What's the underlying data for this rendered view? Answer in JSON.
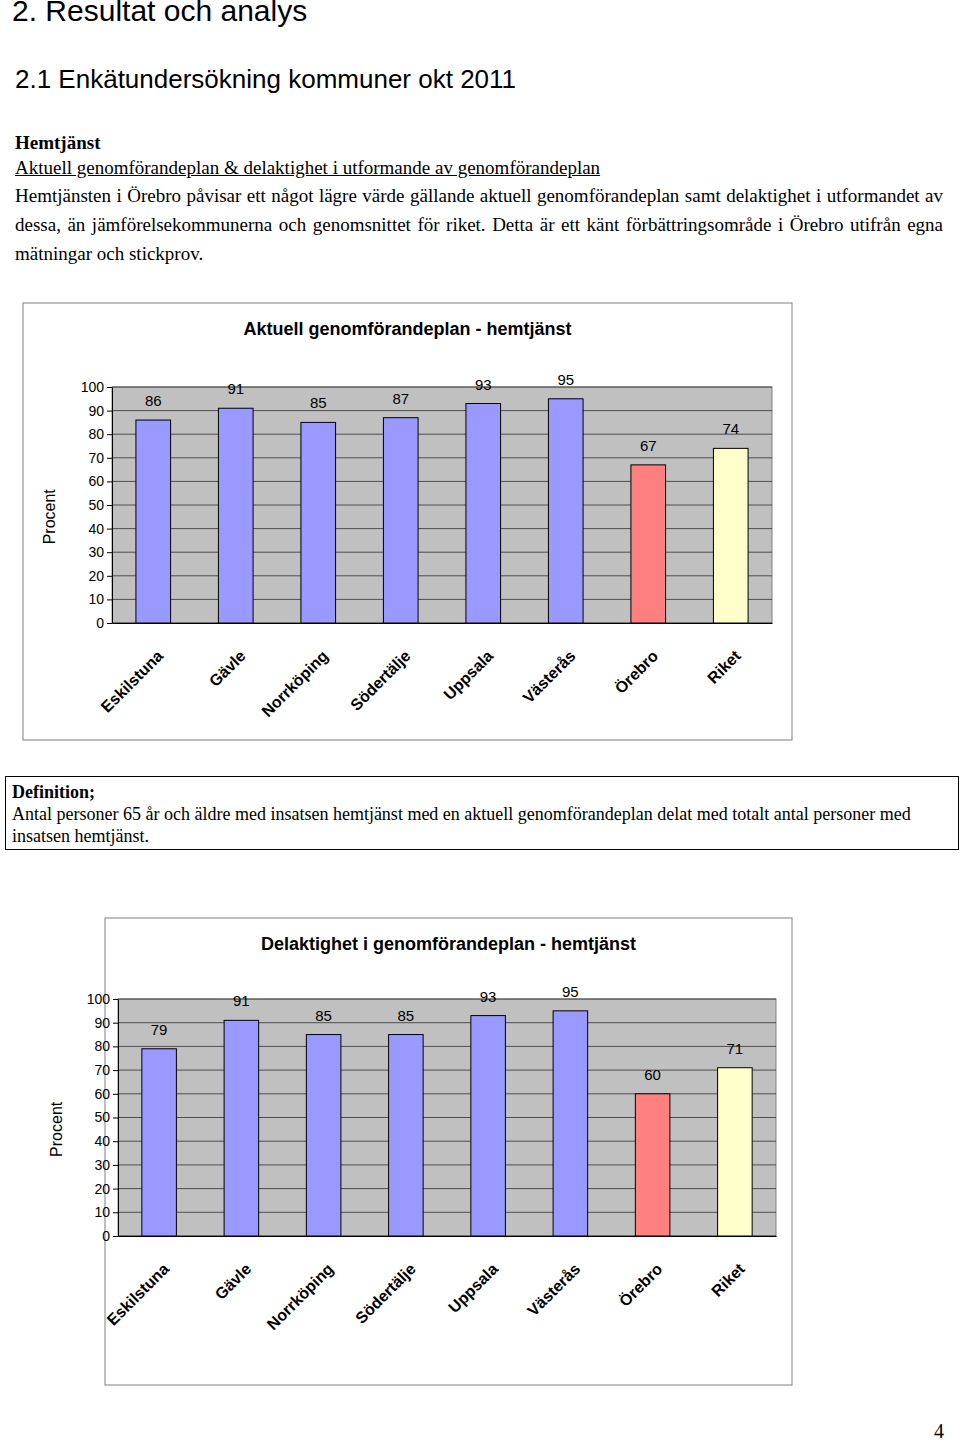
{
  "document": {
    "heading": "2. Resultat och analys",
    "subheading": "2.1 Enkätundersökning kommuner okt 2011",
    "section": "Hemtjänst",
    "subsection": "Aktuell genomförandeplan & delaktighet i utformande av genomförandeplan",
    "paragraph": "Hemtjänsten i Örebro påvisar ett något lägre värde gällande aktuell genomförandeplan samt delaktighet i utformandet av dessa, än jämförelsekommunerna och genomsnittet för riket. Detta är ett känt förbättringsområde i Örebro utifrån egna mätningar och stickprov.",
    "definition_title": "Definition;",
    "definition_text": "Antal personer 65 år och äldre med insatsen hemtjänst med en aktuell genomförandeplan delat med totalt antal personer med insatsen hemtjänst.",
    "page_number": "4"
  },
  "chart_data": [
    {
      "type": "bar",
      "title": "Aktuell genomförandeplan - hemtjänst",
      "y_label": "Procent",
      "categories": [
        "Eskilstuna",
        "Gävle",
        "Norrköping",
        "Södertälje",
        "Uppsala",
        "Västerås",
        "Örebro",
        "Riket"
      ],
      "values": [
        86,
        91,
        85,
        87,
        93,
        95,
        67,
        74
      ],
      "colors": [
        "#9999ff",
        "#9999ff",
        "#9999ff",
        "#9999ff",
        "#9999ff",
        "#9999ff",
        "#ff8080",
        "#ffffcc"
      ],
      "ylim": [
        0,
        100
      ],
      "yticks": [
        0,
        10,
        20,
        30,
        40,
        50,
        60,
        70,
        80,
        90,
        100
      ],
      "grid": true,
      "data_labels": true
    },
    {
      "type": "bar",
      "title": "Delaktighet i genomförandeplan - hemtjänst",
      "y_label": "Procent",
      "categories": [
        "Eskilstuna",
        "Gävle",
        "Norrköping",
        "Södertälje",
        "Uppsala",
        "Västerås",
        "Örebro",
        "Riket"
      ],
      "values": [
        79,
        91,
        85,
        85,
        93,
        95,
        60,
        71
      ],
      "colors": [
        "#9999ff",
        "#9999ff",
        "#9999ff",
        "#9999ff",
        "#9999ff",
        "#9999ff",
        "#ff8080",
        "#ffffcc"
      ],
      "ylim": [
        0,
        100
      ],
      "yticks": [
        0,
        10,
        20,
        30,
        40,
        50,
        60,
        70,
        80,
        90,
        100
      ],
      "grid": true,
      "data_labels": true
    }
  ]
}
